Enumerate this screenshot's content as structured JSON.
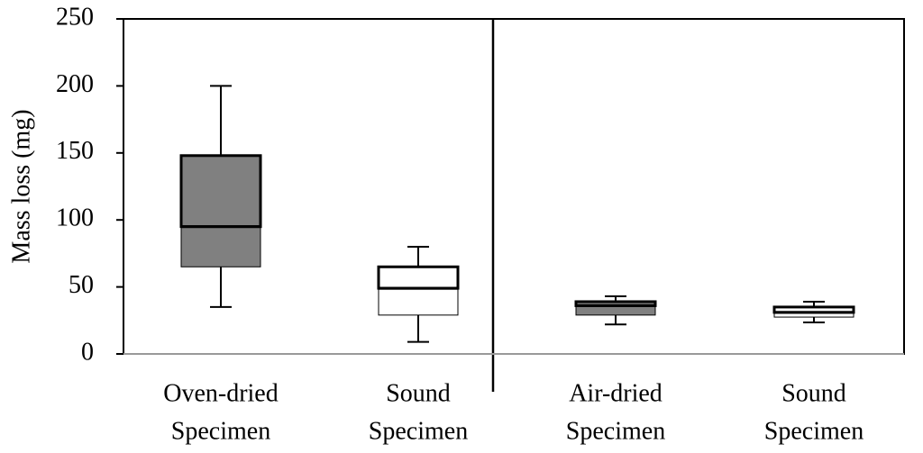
{
  "chart_data": {
    "type": "box",
    "y_label": "Mass loss (mg)",
    "categories": [
      [
        "Oven-dried",
        "Specimen"
      ],
      [
        "Sound",
        "Specimen"
      ],
      [
        "Air-dried",
        "Specimen"
      ],
      [
        "Sound",
        "Specimen"
      ]
    ],
    "boxes": [
      {
        "min": 35,
        "q1": 65,
        "median": 95,
        "q3": 148,
        "max": 200,
        "color": "#808080"
      },
      {
        "min": 9,
        "q1": 29,
        "median": 49,
        "q3": 65,
        "max": 80,
        "color": "#ffffff"
      },
      {
        "min": 22,
        "q1": 29,
        "median": 36,
        "q3": 39,
        "max": 43,
        "color": "#808080"
      },
      {
        "min": 23.5,
        "q1": 27.5,
        "median": 31,
        "q3": 35,
        "max": 39,
        "color": "#ffffff"
      }
    ],
    "ylim": [
      0,
      250
    ],
    "yticks": [
      0,
      50,
      100,
      150,
      200,
      250
    ]
  }
}
